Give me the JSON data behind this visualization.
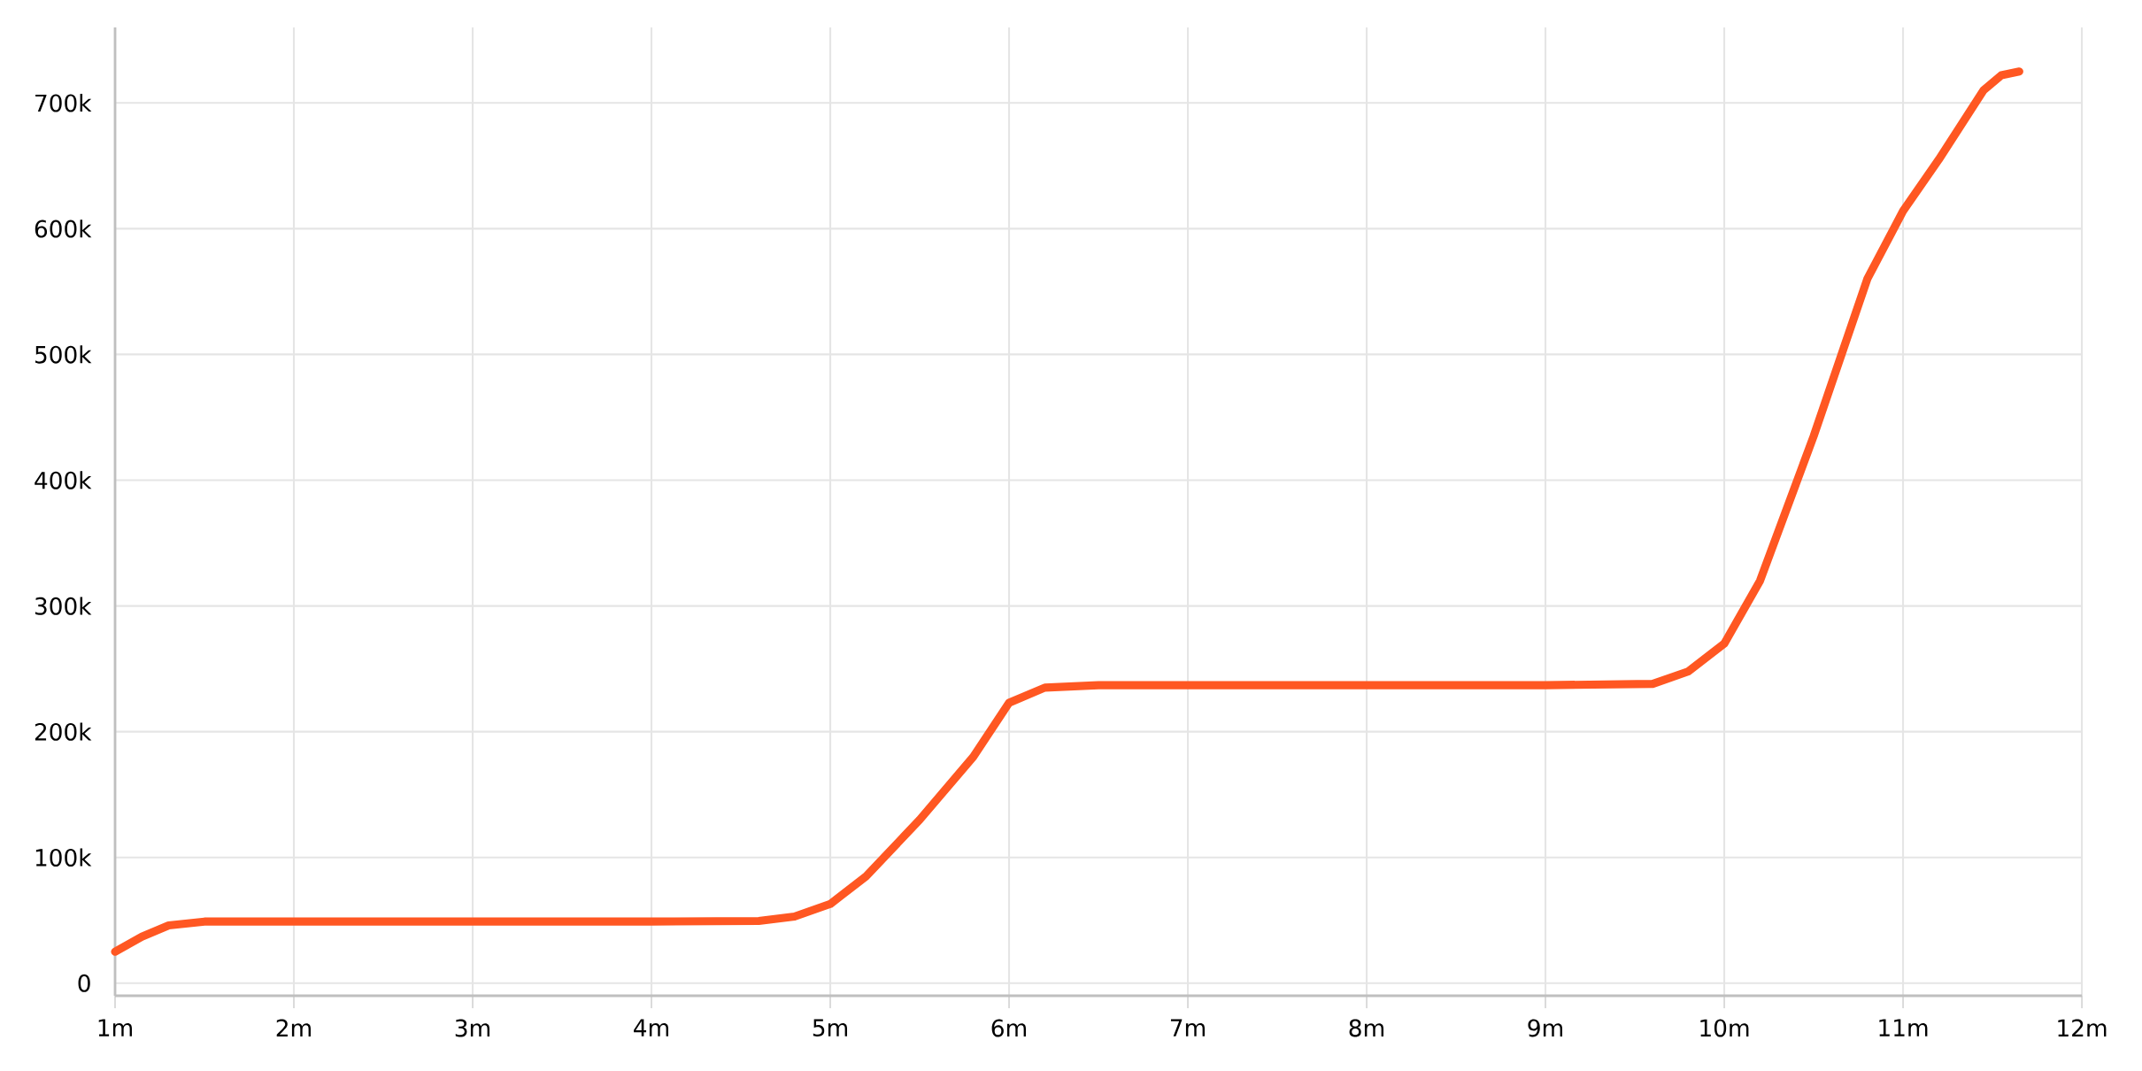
{
  "chart_data": {
    "type": "line",
    "x": [
      1,
      1.15,
      1.3,
      1.5,
      2,
      3,
      4,
      4.6,
      4.8,
      5,
      5.2,
      5.5,
      5.8,
      6,
      6.2,
      6.5,
      7,
      8,
      9,
      9.6,
      9.8,
      10,
      10.2,
      10.5,
      10.8,
      11,
      11.2,
      11.45,
      11.55,
      11.65
    ],
    "series": [
      {
        "color": "#ff5722",
        "values": [
          25000,
          37000,
          46000,
          49000,
          49000,
          49000,
          49000,
          49500,
          53000,
          63000,
          85000,
          130000,
          180000,
          223000,
          235000,
          237000,
          237000,
          237000,
          237000,
          238000,
          248000,
          270000,
          320000,
          435000,
          560000,
          614000,
          655000,
          710000,
          722000,
          725000
        ]
      }
    ],
    "xlim": [
      1,
      12
    ],
    "xticks": [
      {
        "value": 1,
        "label": "1m"
      },
      {
        "value": 2,
        "label": "2m"
      },
      {
        "value": 3,
        "label": "3m"
      },
      {
        "value": 4,
        "label": "4m"
      },
      {
        "value": 5,
        "label": "5m"
      },
      {
        "value": 6,
        "label": "6m"
      },
      {
        "value": 7,
        "label": "7m"
      },
      {
        "value": 8,
        "label": "8m"
      },
      {
        "value": 9,
        "label": "9m"
      },
      {
        "value": 10,
        "label": "10m"
      },
      {
        "value": 11,
        "label": "11m"
      },
      {
        "value": 12,
        "label": "12m"
      }
    ],
    "ylim": [
      -10000,
      760000
    ],
    "yticks": [
      {
        "value": 0,
        "label": "0"
      },
      {
        "value": 100000,
        "label": "100k"
      },
      {
        "value": 200000,
        "label": "200k"
      },
      {
        "value": 300000,
        "label": "300k"
      },
      {
        "value": 400000,
        "label": "400k"
      },
      {
        "value": 500000,
        "label": "500k"
      },
      {
        "value": 600000,
        "label": "600k"
      },
      {
        "value": 700000,
        "label": "700k"
      }
    ],
    "grid": true,
    "marker": "none",
    "line_style": "solid",
    "legend": false
  }
}
